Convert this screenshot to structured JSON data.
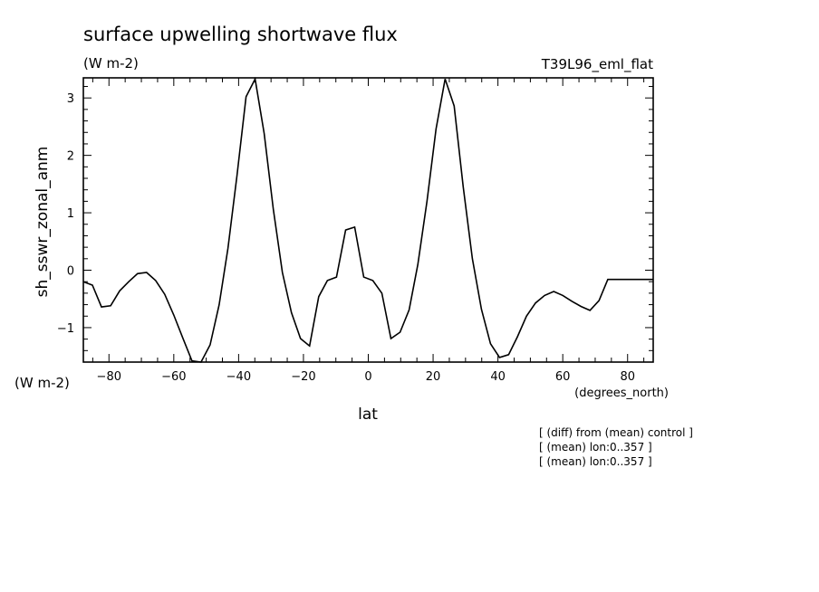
{
  "chart_data": {
    "type": "line",
    "title": "surface upwelling shortwave flux",
    "units": "(W m-2)",
    "experiment": "T39L96_eml_flat",
    "ylabel": "sh_sswr_zonal_anm",
    "ylabel_units": "(W m-2)",
    "xlabel": "lat",
    "xlabel_units": "(degrees_north)",
    "xlim": [
      -87.9,
      87.9
    ],
    "ylim": [
      -1.6,
      3.35
    ],
    "xticks": [
      -80,
      -60,
      -40,
      -20,
      0,
      20,
      40,
      60,
      80
    ],
    "yticks": [
      -1,
      0,
      1,
      2,
      3
    ],
    "xtick_labels": [
      "−80",
      "−60",
      "−40",
      "−20",
      "0",
      "20",
      "40",
      "60",
      "80"
    ],
    "ytick_labels": [
      "−1",
      "0",
      "1",
      "2",
      "3"
    ],
    "annotations": [
      "[ (diff) from (mean) control ]",
      "[ (mean) lon:0..357 ]",
      "[ (mean) lon:0..357 ]"
    ],
    "x": [
      -87.9,
      -85.1,
      -82.3,
      -79.5,
      -76.7,
      -73.9,
      -71.2,
      -68.4,
      -65.6,
      -62.8,
      -60.0,
      -57.2,
      -54.4,
      -51.6,
      -48.8,
      -46.0,
      -43.3,
      -40.5,
      -37.7,
      -34.9,
      -32.1,
      -29.3,
      -26.5,
      -23.7,
      -20.9,
      -18.1,
      -15.3,
      -12.6,
      -9.8,
      -7.0,
      -4.2,
      -1.4,
      1.4,
      4.2,
      7.0,
      9.8,
      12.6,
      15.3,
      18.1,
      20.9,
      23.7,
      26.5,
      29.3,
      32.1,
      34.9,
      37.7,
      40.5,
      43.3,
      46.0,
      48.8,
      51.6,
      54.4,
      57.2,
      60.0,
      62.8,
      65.6,
      68.4,
      71.2,
      73.9,
      76.7,
      79.5,
      82.3,
      85.1,
      87.9
    ],
    "series": [
      {
        "values": [
          -0.2,
          -0.26,
          -0.64,
          -0.62,
          -0.36,
          -0.2,
          -0.06,
          -0.04,
          -0.18,
          -0.42,
          -0.78,
          -1.18,
          -1.58,
          -1.6,
          -1.3,
          -0.6,
          0.38,
          1.65,
          3.02,
          3.33,
          2.38,
          1.06,
          -0.04,
          -0.74,
          -1.19,
          -1.32,
          -0.46,
          -0.18,
          -0.12,
          0.7,
          0.75,
          -0.12,
          -0.18,
          -0.4,
          -1.19,
          -1.08,
          -0.69,
          0.1,
          1.2,
          2.46,
          3.33,
          2.86,
          1.45,
          0.2,
          -0.68,
          -1.28,
          -1.52,
          -1.47,
          -1.16,
          -0.8,
          -0.57,
          -0.44,
          -0.37,
          -0.44,
          -0.54,
          -0.63,
          -0.7,
          -0.53,
          -0.16,
          -0.16,
          -0.16,
          -0.16,
          -0.16,
          -0.16
        ]
      }
    ]
  }
}
